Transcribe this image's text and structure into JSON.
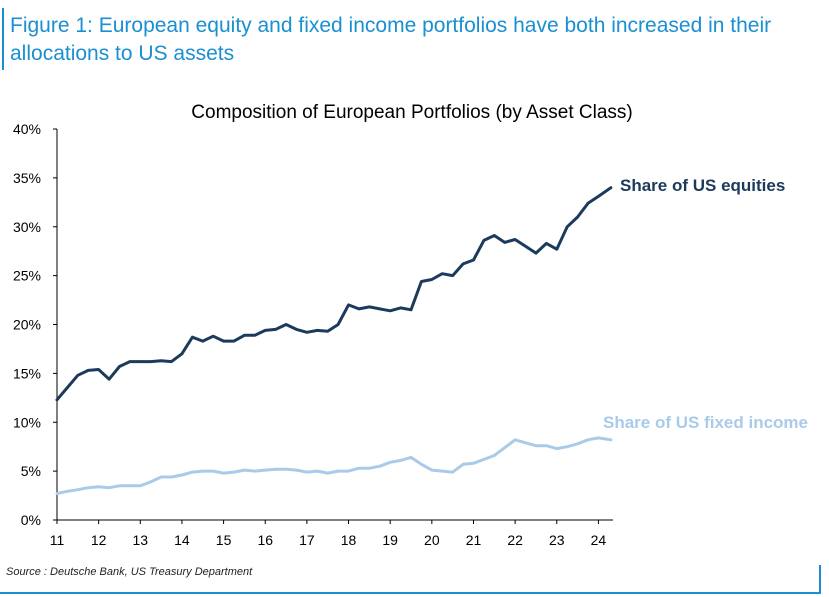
{
  "figure_title": "Figure 1: European equity and fixed income portfolios have both increased in their allocations to US assets",
  "source": "Source : Deutsche Bank, US Treasury Department",
  "colors": {
    "accent": "#1a8fd1",
    "equities": "#1b3a5c",
    "fixed_income": "#a9cbe9"
  },
  "chart_data": {
    "type": "line",
    "title": "Composition of European Portfolios (by Asset Class)",
    "xlabel": "",
    "ylabel": "",
    "xlim": [
      11,
      24.35
    ],
    "ylim": [
      0,
      40
    ],
    "x_ticks": [
      "11",
      "12",
      "13",
      "14",
      "15",
      "16",
      "17",
      "18",
      "19",
      "20",
      "21",
      "22",
      "23",
      "24"
    ],
    "y_ticks": [
      "0%",
      "5%",
      "10%",
      "15%",
      "20%",
      "25%",
      "30%",
      "35%",
      "40%"
    ],
    "x": [
      11.0,
      11.2,
      11.5,
      11.75,
      12.0,
      12.25,
      12.5,
      12.75,
      13.0,
      13.25,
      13.5,
      13.75,
      14.0,
      14.25,
      14.5,
      14.75,
      15.0,
      15.25,
      15.5,
      15.75,
      16.0,
      16.25,
      16.5,
      16.75,
      17.0,
      17.25,
      17.5,
      17.75,
      18.0,
      18.25,
      18.5,
      18.75,
      19.0,
      19.25,
      19.5,
      19.75,
      20.0,
      20.25,
      20.5,
      20.75,
      21.0,
      21.25,
      21.5,
      21.75,
      22.0,
      22.25,
      22.5,
      22.75,
      23.0,
      23.25,
      23.5,
      23.75,
      24.0,
      24.3
    ],
    "series": [
      {
        "name": "Share of US equities",
        "values": [
          12.3,
          13.3,
          14.8,
          15.3,
          15.4,
          14.4,
          15.7,
          16.2,
          16.2,
          16.2,
          16.3,
          16.2,
          17.0,
          18.7,
          18.3,
          18.8,
          18.3,
          18.3,
          18.9,
          18.9,
          19.4,
          19.5,
          20.0,
          19.5,
          19.2,
          19.4,
          19.3,
          20.0,
          22.0,
          21.6,
          21.8,
          21.6,
          21.4,
          21.7,
          21.5,
          24.4,
          24.6,
          25.2,
          25.0,
          26.2,
          26.6,
          28.6,
          29.1,
          28.4,
          28.7,
          28.0,
          27.3,
          28.3,
          27.7,
          30.0,
          31.0,
          32.4,
          33.1,
          34.0
        ]
      },
      {
        "name": "Share of US fixed income",
        "values": [
          2.7,
          2.9,
          3.1,
          3.3,
          3.4,
          3.3,
          3.5,
          3.5,
          3.5,
          3.9,
          4.4,
          4.4,
          4.6,
          4.9,
          5.0,
          5.0,
          4.8,
          4.9,
          5.1,
          5.0,
          5.1,
          5.2,
          5.2,
          5.1,
          4.9,
          5.0,
          4.8,
          5.0,
          5.0,
          5.3,
          5.3,
          5.5,
          5.9,
          6.1,
          6.4,
          5.7,
          5.1,
          5.0,
          4.9,
          5.7,
          5.8,
          6.2,
          6.6,
          7.4,
          8.2,
          7.9,
          7.6,
          7.6,
          7.3,
          7.5,
          7.8,
          8.2,
          8.4,
          8.2
        ]
      }
    ],
    "grid": false,
    "legend": "inline labels at line ends"
  }
}
